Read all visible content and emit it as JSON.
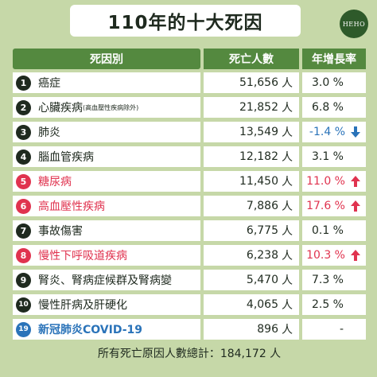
{
  "title": "110年的十大死因",
  "logo_text": "HEHO",
  "headers": {
    "cause": "死因別",
    "deaths": "死亡人數",
    "growth": "年增長率"
  },
  "colors": {
    "green": "#54893f",
    "red": "#e0334f",
    "blue": "#2a73b9",
    "background": "#c6d8a8"
  },
  "chart_data": {
    "type": "table",
    "title": "110年的十大死因",
    "columns": [
      "死因別",
      "死亡人數",
      "年增長率"
    ],
    "rows": [
      {
        "rank": "1",
        "cause": "癌症",
        "note": "",
        "deaths": "51,656",
        "unit": "人",
        "growth": "3.0 %",
        "trend": "",
        "highlight": ""
      },
      {
        "rank": "2",
        "cause": "心臟疾病",
        "note": "(高血壓性疾病除外)",
        "deaths": "21,852",
        "unit": "人",
        "growth": "6.8 %",
        "trend": "",
        "highlight": ""
      },
      {
        "rank": "3",
        "cause": "肺炎",
        "note": "",
        "deaths": "13,549",
        "unit": "人",
        "growth": "-1.4 %",
        "trend": "down",
        "highlight": ""
      },
      {
        "rank": "4",
        "cause": "腦血管疾病",
        "note": "",
        "deaths": "12,182",
        "unit": "人",
        "growth": "3.1 %",
        "trend": "",
        "highlight": ""
      },
      {
        "rank": "5",
        "cause": "糖尿病",
        "note": "",
        "deaths": "11,450",
        "unit": "人",
        "growth": "11.0 %",
        "trend": "up",
        "highlight": "red"
      },
      {
        "rank": "6",
        "cause": "高血壓性疾病",
        "note": "",
        "deaths": "7,886",
        "unit": "人",
        "growth": "17.6 %",
        "trend": "up",
        "highlight": "red"
      },
      {
        "rank": "7",
        "cause": "事故傷害",
        "note": "",
        "deaths": "6,775",
        "unit": "人",
        "growth": "0.1 %",
        "trend": "",
        "highlight": ""
      },
      {
        "rank": "8",
        "cause": "慢性下呼吸道疾病",
        "note": "",
        "deaths": "6,238",
        "unit": "人",
        "growth": "10.3 %",
        "trend": "up",
        "highlight": "red"
      },
      {
        "rank": "9",
        "cause": "腎炎、腎病症候群及腎病變",
        "note": "",
        "deaths": "5,470",
        "unit": "人",
        "growth": "7.3 %",
        "trend": "",
        "highlight": ""
      },
      {
        "rank": "10",
        "cause": "慢性肝病及肝硬化",
        "note": "",
        "deaths": "4,065",
        "unit": "人",
        "growth": "2.5 %",
        "trend": "",
        "highlight": ""
      },
      {
        "rank": "19",
        "cause": "新冠肺炎COVID-19",
        "note": "",
        "deaths": "896",
        "unit": "人",
        "growth": "-",
        "trend": "",
        "highlight": "blue"
      }
    ]
  },
  "footer": "所有死亡原因人數總計：184,172 人"
}
